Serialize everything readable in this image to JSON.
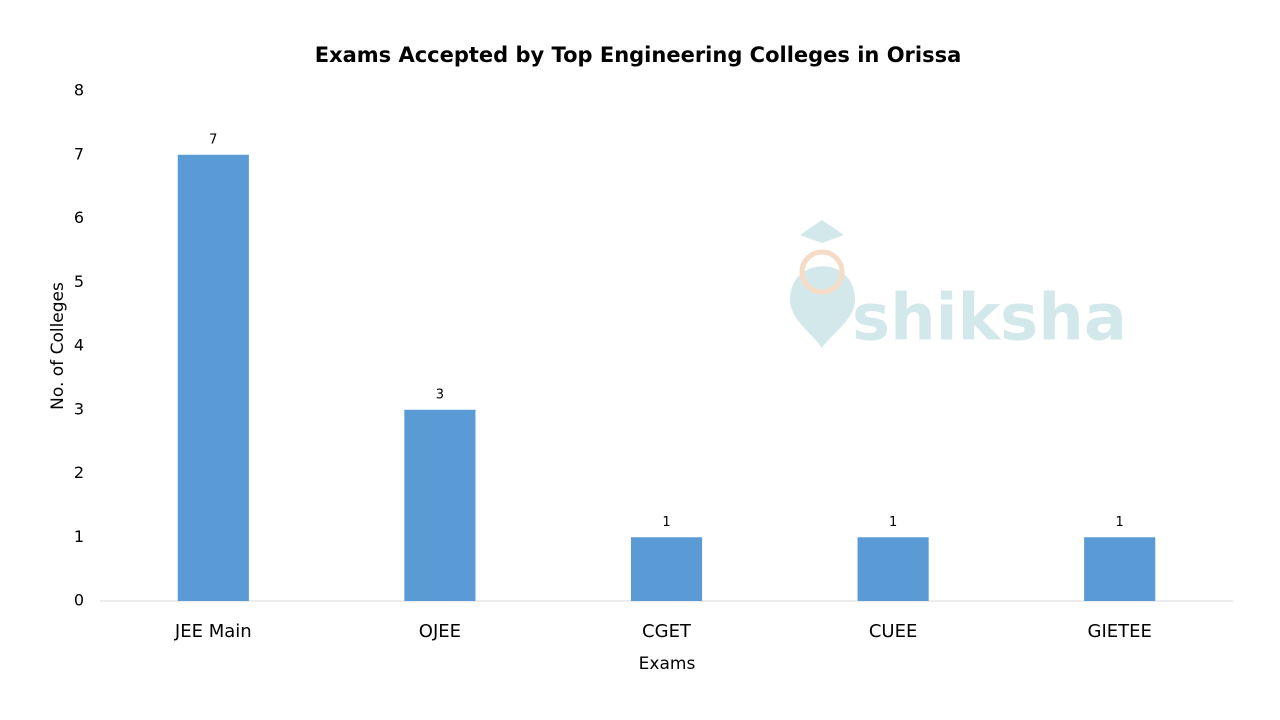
{
  "chart_data": {
    "type": "bar",
    "title": "Exams Accepted by Top Engineering Colleges in Orissa",
    "x_label": "Exams",
    "y_label": "No. of Colleges",
    "categories": [
      "JEE Main",
      "OJEE",
      "CGET",
      "CUEE",
      "GIETEE"
    ],
    "values": [
      7,
      3,
      1,
      1,
      1
    ],
    "color": "#5b9bd5",
    "ylim": [
      0,
      8
    ],
    "yticks": [
      0,
      1,
      2,
      3,
      4,
      5,
      6,
      7,
      8
    ],
    "grid": false,
    "watermark": "shiksha"
  }
}
